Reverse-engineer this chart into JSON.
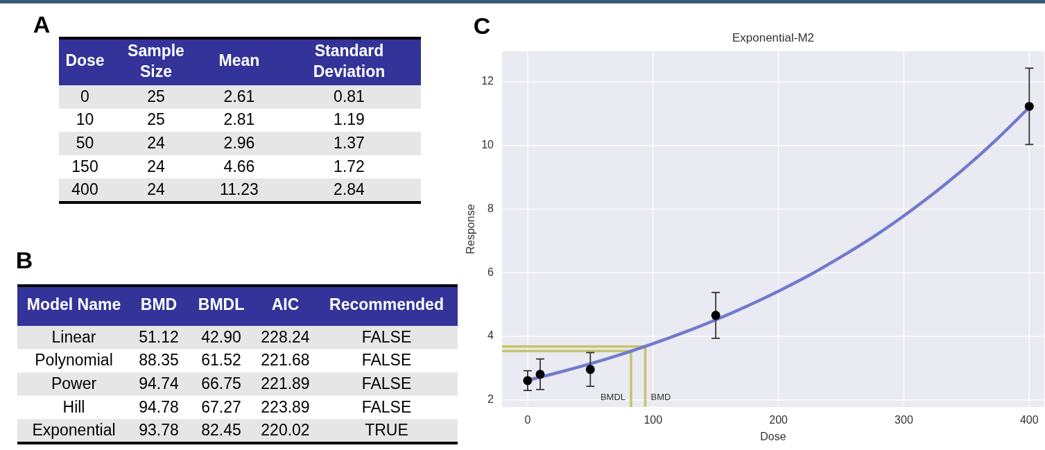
{
  "chart_data": [
    {
      "type": "other",
      "title": "A",
      "categories": [
        "Dose",
        "Sample Size",
        "Mean",
        "Standard Deviation"
      ],
      "cell_labels": [
        [
          "0",
          "25",
          "2.61",
          "0.81"
        ],
        [
          "10",
          "25",
          "2.81",
          "1.19"
        ],
        [
          "50",
          "24",
          "2.96",
          "1.37"
        ],
        [
          "150",
          "24",
          "4.66",
          "1.72"
        ],
        [
          "400",
          "24",
          "11.23",
          "2.84"
        ]
      ]
    },
    {
      "type": "other",
      "title": "B",
      "categories": [
        "Model Name",
        "BMD",
        "BMDL",
        "AIC",
        "Recommended"
      ],
      "cell_labels": [
        [
          "Linear",
          "51.12",
          "42.90",
          "228.24",
          "FALSE"
        ],
        [
          "Polynomial",
          "88.35",
          "61.52",
          "221.68",
          "FALSE"
        ],
        [
          "Power",
          "94.74",
          "66.75",
          "221.89",
          "FALSE"
        ],
        [
          "Hill",
          "94.78",
          "67.27",
          "223.89",
          "FALSE"
        ],
        [
          "Exponential",
          "93.78",
          "82.45",
          "220.02",
          "TRUE"
        ]
      ]
    },
    {
      "type": "scatter",
      "title": "Exponential-M2",
      "xlabel": "Dose",
      "ylabel": "Response",
      "annotations": [
        "C"
      ],
      "xlim": [
        -20.4,
        412
      ],
      "xticks": [
        0,
        100,
        200,
        300,
        400
      ],
      "ylim": [
        1.78,
        12.96
      ],
      "yticks": [
        2,
        4,
        6,
        8,
        10,
        12
      ],
      "grid": true,
      "series": [
        {
          "type": "line",
          "color": "#6a74c9",
          "x": [
            0,
            25,
            50,
            75,
            100,
            125,
            150,
            175,
            200,
            225,
            250,
            275,
            300,
            325,
            350,
            375,
            400
          ],
          "values": [
            2.62,
            2.87,
            3.14,
            3.44,
            3.77,
            4.13,
            4.52,
            4.95,
            5.42,
            5.93,
            6.5,
            7.11,
            7.79,
            8.53,
            9.34,
            10.23,
            11.2
          ]
        },
        {
          "type": "scatter",
          "color": "#000000",
          "marker": "circle",
          "x": [
            0,
            10,
            50,
            150,
            400
          ],
          "values": [
            2.61,
            2.81,
            2.96,
            4.66,
            11.23
          ],
          "errors": [
            0.31,
            0.48,
            0.53,
            0.72,
            1.2
          ]
        }
      ],
      "ref_lines": [
        {
          "axis": "x",
          "value": 82.45,
          "label": "BMDL",
          "color": "#c5c36a"
        },
        {
          "axis": "x",
          "value": 93.78,
          "label": "BMD",
          "color": "#c5c36a"
        },
        {
          "axis": "y",
          "value": 3.54,
          "color": "#c5c36a"
        },
        {
          "axis": "y",
          "value": 3.68,
          "color": "#c5c36a"
        }
      ]
    }
  ]
}
